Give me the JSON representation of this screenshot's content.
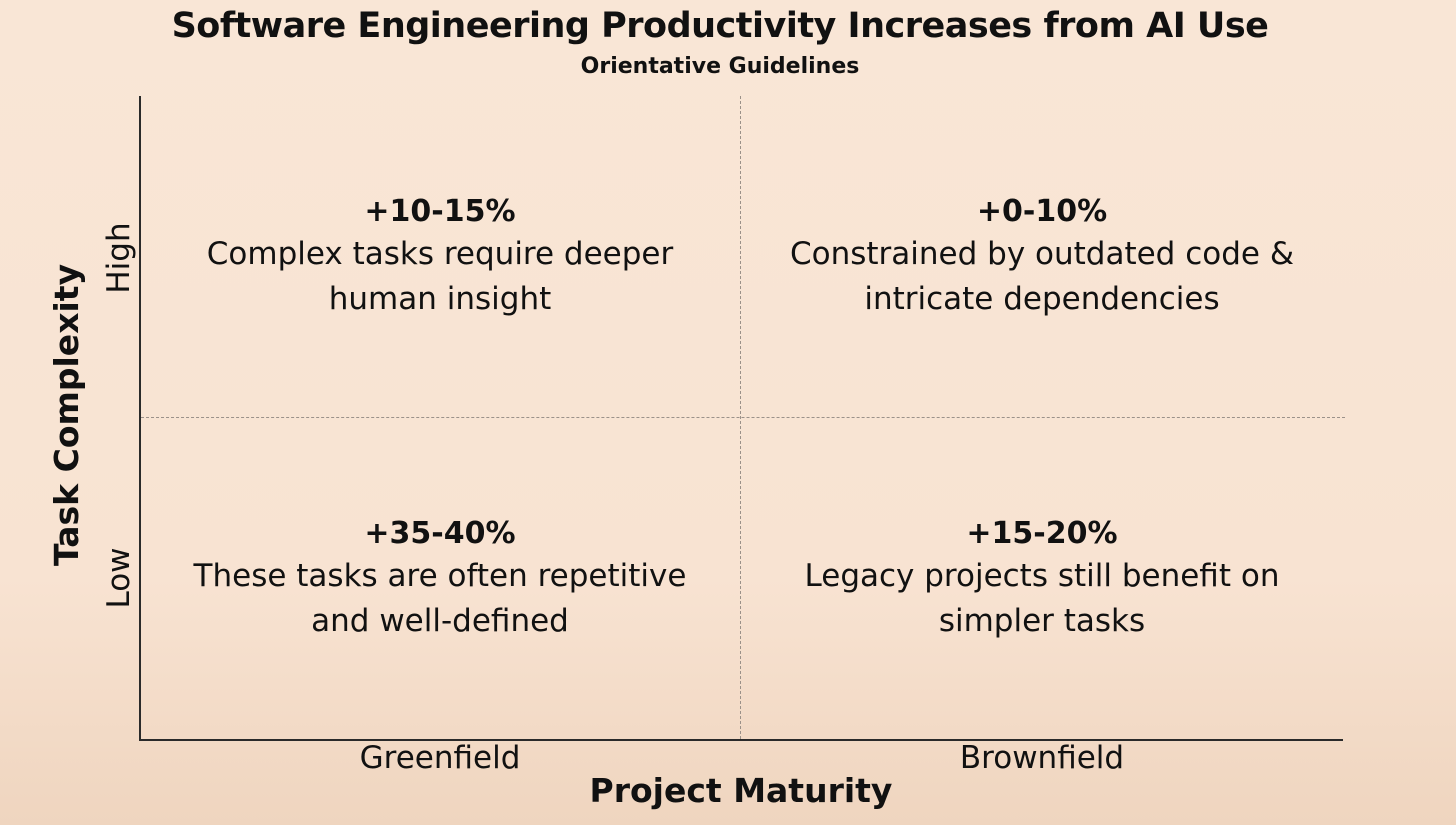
{
  "header": {
    "title": "Software Engineering Productivity Increases from AI Use",
    "subtitle": "Orientative Guidelines"
  },
  "axes": {
    "x_label": "Project Maturity",
    "x_ticks": [
      "Greenfield",
      "Brownfield"
    ],
    "y_label": "Task Complexity",
    "y_ticks": [
      "High",
      "Low"
    ]
  },
  "quadrants": {
    "greenfield_high": {
      "value": "+10-15%",
      "line1": "Complex tasks require deeper",
      "line2": "human insight"
    },
    "brownfield_high": {
      "value": "+0-10%",
      "line1": "Constrained by outdated code &",
      "line2": "intricate dependencies"
    },
    "greenfield_low": {
      "value": "+35-40%",
      "line1": "These tasks are often repetitive",
      "line2": "and well-defined"
    },
    "brownfield_low": {
      "value": "+15-20%",
      "line1": "Legacy projects still benefit on",
      "line2": "simpler tasks"
    }
  },
  "colors": {
    "background": "#f8e3d2",
    "text": "#111111",
    "axis": "#2a2a2a",
    "divider": "#9b9189"
  }
}
